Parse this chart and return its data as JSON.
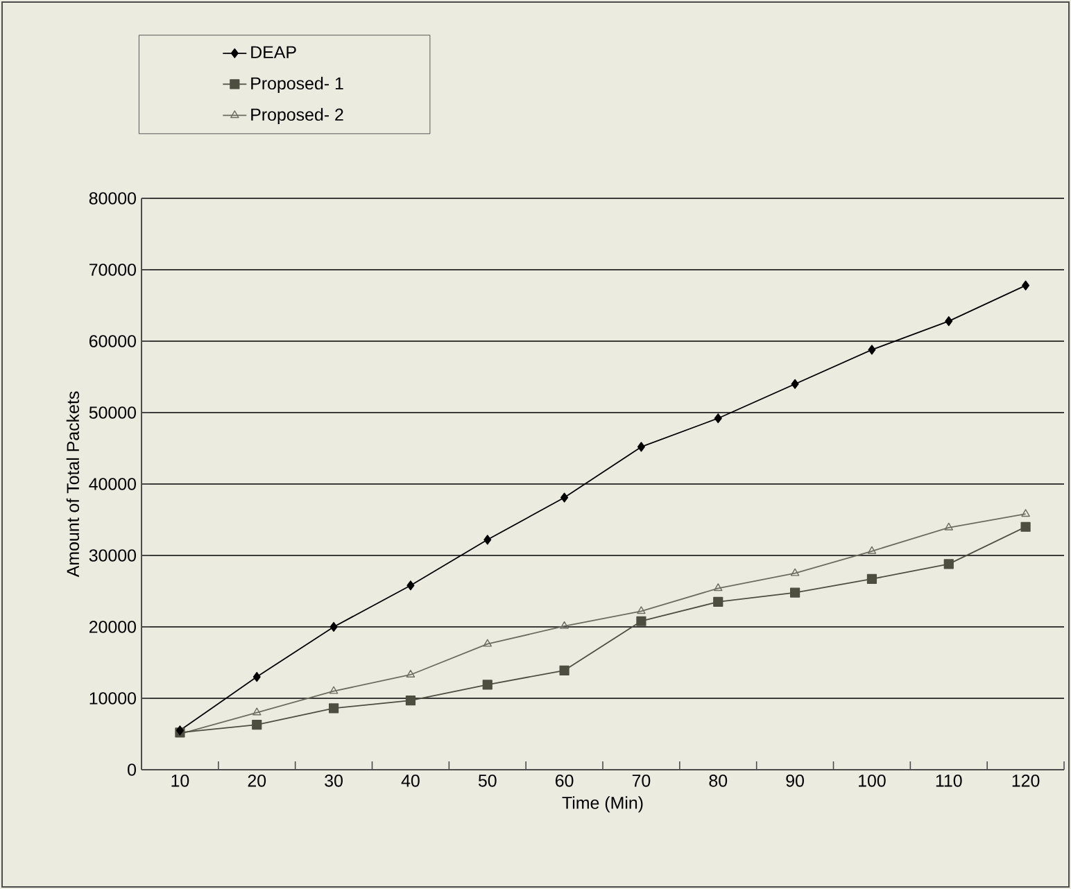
{
  "chart_data": {
    "type": "line",
    "xlabel": "Time (Min)",
    "ylabel": "Amount of Total Packets",
    "categories": [
      "10",
      "20",
      "30",
      "40",
      "50",
      "60",
      "70",
      "80",
      "90",
      "100",
      "110",
      "120"
    ],
    "series": [
      {
        "name": "DEAP",
        "color": "#000000",
        "marker": "diamond",
        "values": [
          5500,
          13000,
          20000,
          25800,
          32200,
          38100,
          45200,
          49200,
          54000,
          58800,
          62800,
          67800
        ]
      },
      {
        "name": "Proposed- 1",
        "color": "#4d4d40",
        "marker": "square",
        "values": [
          5200,
          6300,
          8600,
          9700,
          11900,
          13900,
          20800,
          23500,
          24800,
          26700,
          28800,
          34000
        ]
      },
      {
        "name": "Proposed- 2",
        "color": "#6b6b60",
        "marker": "triangle",
        "values": [
          5000,
          8000,
          11000,
          13300,
          17600,
          20100,
          22200,
          25400,
          27500,
          30600,
          33900,
          35800
        ]
      }
    ],
    "ylim": [
      0,
      80000
    ],
    "yticks": [
      0,
      10000,
      20000,
      30000,
      40000,
      50000,
      60000,
      70000,
      80000
    ],
    "grid": "y",
    "legend": "top left"
  }
}
